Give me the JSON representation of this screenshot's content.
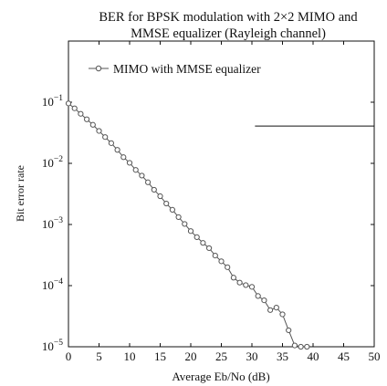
{
  "chart_data": {
    "type": "line",
    "title_lines": [
      "BER for BPSK modulation with 2×2 MIMO and",
      "MMSE equalizer (Rayleigh channel)"
    ],
    "xlabel": "Average Eb/No (dB)",
    "ylabel": "Bit error rate",
    "xlim": [
      0,
      50
    ],
    "ylim": [
      1e-05,
      1.0
    ],
    "yscale": "log",
    "grid": false,
    "legend_position": "top-left",
    "x_ticks": [
      "0",
      "5",
      "10",
      "15",
      "20",
      "25",
      "30",
      "35",
      "40",
      "45",
      "50"
    ],
    "y_ticks": [
      {
        "value": 0.1,
        "base": "10",
        "exp": "−1"
      },
      {
        "value": 0.01,
        "base": "10",
        "exp": "−2"
      },
      {
        "value": 0.001,
        "base": "10",
        "exp": "−3"
      },
      {
        "value": 0.0001,
        "base": "10",
        "exp": "−4"
      },
      {
        "value": 1e-05,
        "base": "10",
        "exp": "−5"
      }
    ],
    "series": [
      {
        "name": "MIMO with MMSE equalizer",
        "color": "#555555",
        "marker": "circle",
        "x": [
          0,
          1,
          2,
          3,
          4,
          5,
          6,
          7,
          8,
          9,
          10,
          11,
          12,
          13,
          14,
          15,
          16,
          17,
          18,
          19,
          20,
          21,
          22,
          23,
          24,
          25,
          26,
          27,
          28,
          29,
          30,
          31,
          32,
          33,
          34,
          35,
          36,
          37,
          38,
          39
        ],
        "y": [
          0.0955,
          0.0794,
          0.0646,
          0.0525,
          0.0427,
          0.0339,
          0.0269,
          0.0214,
          0.0166,
          0.0126,
          0.0102,
          0.0078,
          0.0063,
          0.0049,
          0.0037,
          0.0029,
          0.0022,
          0.00174,
          0.00132,
          0.00102,
          0.00078,
          0.00062,
          0.0005,
          0.00041,
          0.00031,
          0.00025,
          0.0002,
          0.000135,
          0.000112,
          0.000102,
          9.55e-05,
          6.76e-05,
          5.75e-05,
          3.98e-05,
          4.37e-05,
          3.39e-05,
          1.86e-05,
          1.05e-05,
          1e-05,
          1e-05
        ]
      }
    ],
    "annotations": [
      {
        "type": "hline",
        "y": 0.04073,
        "x_start": 30.5,
        "x_end": 50
      }
    ]
  }
}
